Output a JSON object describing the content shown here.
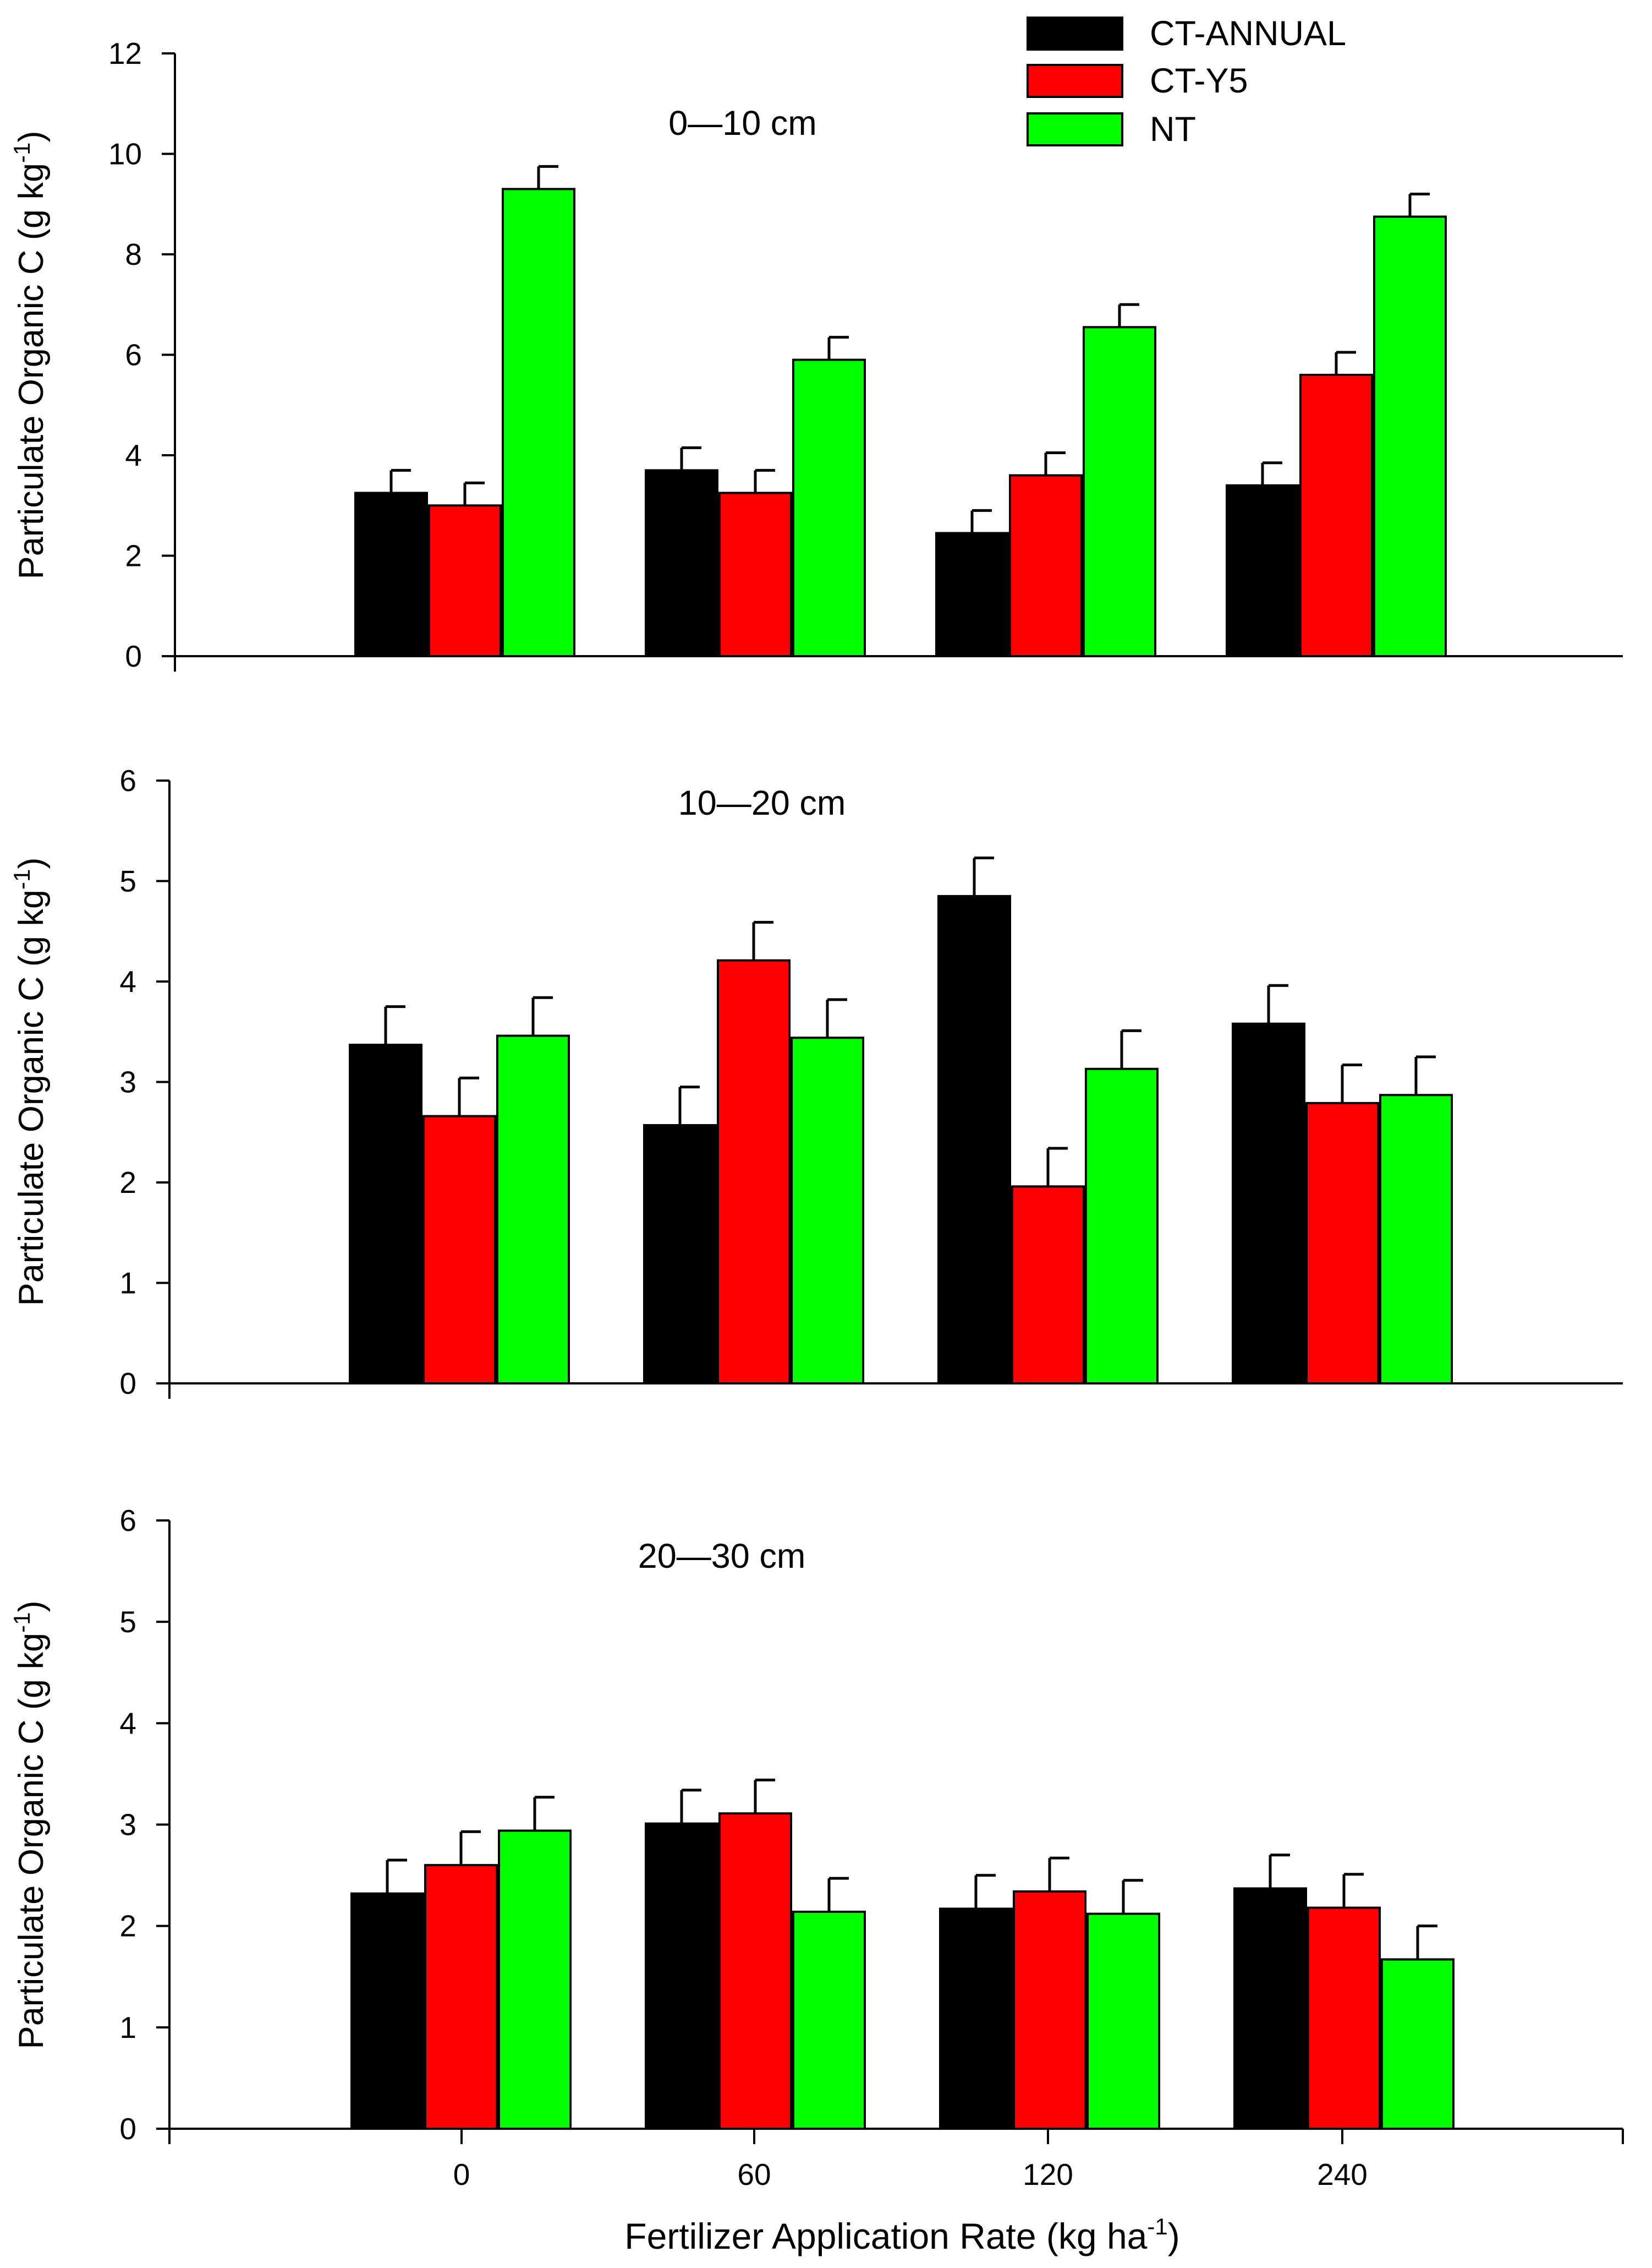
{
  "chart_data": [
    {
      "type": "bar",
      "title": "0—10 cm",
      "xlabel": "",
      "ylabel": "Particulate Organic C (g kg-1)",
      "ylim": [
        0,
        12
      ],
      "yticks": [
        "0",
        "2",
        "4",
        "6",
        "8",
        "10",
        "12"
      ],
      "categories": [
        "0",
        "60",
        "120",
        "240"
      ],
      "series": [
        {
          "name": "CT-ANNUAL",
          "values": [
            3.25,
            3.7,
            2.45,
            3.4
          ],
          "errors": [
            0.45,
            0.45,
            0.45,
            0.45
          ]
        },
        {
          "name": "CT-Y5",
          "values": [
            3.0,
            3.25,
            3.6,
            5.6
          ],
          "errors": [
            0.45,
            0.45,
            0.45,
            0.45
          ]
        },
        {
          "name": "NT",
          "values": [
            9.3,
            5.9,
            6.55,
            8.75
          ],
          "errors": [
            0.45,
            0.45,
            0.45,
            0.45
          ]
        }
      ]
    },
    {
      "type": "bar",
      "title": "10—20 cm",
      "xlabel": "",
      "ylabel": "Particulate Organic C (g kg-1)",
      "ylim": [
        0,
        6
      ],
      "yticks": [
        "0",
        "1",
        "2",
        "3",
        "4",
        "5",
        "6"
      ],
      "categories": [
        "0",
        "60",
        "120",
        "240"
      ],
      "series": [
        {
          "name": "CT-ANNUAL",
          "values": [
            3.37,
            2.57,
            4.85,
            3.58
          ],
          "errors": [
            0.38,
            0.38,
            0.38,
            0.38
          ]
        },
        {
          "name": "CT-Y5",
          "values": [
            2.66,
            4.21,
            1.96,
            2.79
          ],
          "errors": [
            0.38,
            0.38,
            0.38,
            0.38
          ]
        },
        {
          "name": "NT",
          "values": [
            3.46,
            3.44,
            3.13,
            2.87
          ],
          "errors": [
            0.38,
            0.38,
            0.38,
            0.38
          ]
        }
      ]
    },
    {
      "type": "bar",
      "title": "20—30 cm",
      "xlabel": "Fertilizer Application Rate (kg ha-1)",
      "ylabel": "Particulate Organic C (g kg-1)",
      "ylim": [
        0,
        6
      ],
      "yticks": [
        "0",
        "1",
        "2",
        "3",
        "4",
        "5",
        "6"
      ],
      "categories": [
        "0",
        "60",
        "120",
        "240"
      ],
      "series": [
        {
          "name": "CT-ANNUAL",
          "values": [
            2.32,
            3.01,
            2.17,
            2.37
          ],
          "errors": [
            0.33,
            0.33,
            0.33,
            0.33
          ]
        },
        {
          "name": "CT-Y5",
          "values": [
            2.6,
            3.11,
            2.34,
            2.18
          ],
          "errors": [
            0.33,
            0.33,
            0.33,
            0.33
          ]
        },
        {
          "name": "NT",
          "values": [
            2.94,
            2.14,
            2.12,
            1.67
          ],
          "errors": [
            0.33,
            0.33,
            0.33,
            0.33
          ]
        }
      ]
    }
  ],
  "legend": {
    "items": [
      {
        "label": "CT-ANNUAL",
        "color": "#000000"
      },
      {
        "label": "CT-Y5",
        "color": "#ff0000"
      },
      {
        "label": "NT",
        "color": "#00ff00"
      }
    ]
  },
  "labels": {
    "ylabel_main": "Particulate Organic C (g kg",
    "ylabel_sup": "-1",
    "ylabel_close": ")",
    "xlabel_main": "Fertilizer Application Rate (kg ha",
    "xlabel_sup": "-1",
    "xlabel_close": ")"
  }
}
